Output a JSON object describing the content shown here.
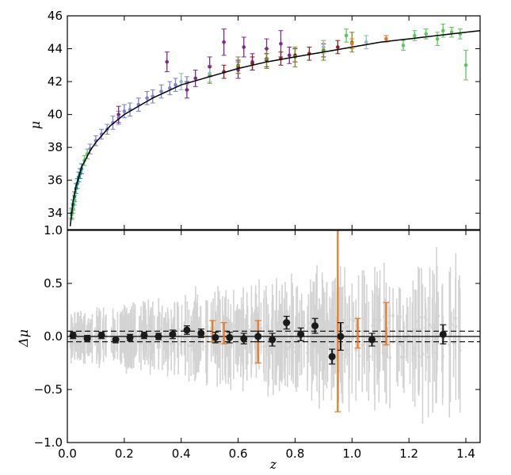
{
  "chart_data": [
    {
      "type": "scatter",
      "panel": "top",
      "ylabel": "μ",
      "xlim": [
        0.0,
        1.45
      ],
      "ylim": [
        33.0,
        46.0
      ],
      "yticks": [
        34,
        36,
        38,
        40,
        42,
        44,
        46
      ],
      "grid": false,
      "legend": "none",
      "model_curve": {
        "name": "",
        "x": [
          0.01,
          0.02,
          0.03,
          0.05,
          0.08,
          0.1,
          0.15,
          0.2,
          0.3,
          0.4,
          0.5,
          0.6,
          0.7,
          0.8,
          0.9,
          1.0,
          1.1,
          1.2,
          1.3,
          1.4,
          1.45
        ],
        "y": [
          33.2,
          34.7,
          35.6,
          36.8,
          37.8,
          38.3,
          39.3,
          40.0,
          41.0,
          41.8,
          42.3,
          42.8,
          43.2,
          43.5,
          43.8,
          44.1,
          44.4,
          44.6,
          44.8,
          45.0,
          45.1
        ],
        "color": "#000000"
      },
      "series": [
        {
          "color": "#1b8a8a",
          "points": [
            [
              0.015,
              34.0,
              0.3
            ],
            [
              0.02,
              34.5,
              0.3
            ],
            [
              0.025,
              35.0,
              0.3
            ],
            [
              0.03,
              35.5,
              0.3
            ],
            [
              0.035,
              35.8,
              0.3
            ],
            [
              0.04,
              36.2,
              0.3
            ],
            [
              0.045,
              36.4,
              0.3
            ],
            [
              0.05,
              36.7,
              0.3
            ]
          ]
        },
        {
          "color": "#5ec45e",
          "points": [
            [
              0.015,
              33.9,
              0.3
            ],
            [
              0.02,
              34.3,
              0.3
            ],
            [
              0.025,
              34.8,
              0.3
            ],
            [
              0.06,
              37.2,
              0.3
            ],
            [
              0.07,
              37.6,
              0.3
            ],
            [
              0.98,
              44.8,
              0.4
            ],
            [
              1.18,
              44.2,
              0.3
            ],
            [
              1.22,
              44.8,
              0.3
            ],
            [
              1.26,
              44.9,
              0.3
            ],
            [
              1.3,
              44.6,
              0.4
            ],
            [
              1.32,
              45.1,
              0.4
            ],
            [
              1.35,
              45.0,
              0.3
            ],
            [
              1.38,
              44.9,
              0.3
            ],
            [
              1.4,
              43.0,
              0.9
            ]
          ]
        },
        {
          "color": "#7f7fd5",
          "points": [
            [
              0.08,
              37.9,
              0.3
            ],
            [
              0.1,
              38.4,
              0.3
            ],
            [
              0.12,
              38.8,
              0.3
            ],
            [
              0.14,
              39.1,
              0.3
            ],
            [
              0.16,
              39.5,
              0.4
            ],
            [
              0.18,
              39.8,
              0.4
            ],
            [
              0.2,
              40.2,
              0.4
            ],
            [
              0.22,
              40.3,
              0.4
            ],
            [
              0.25,
              40.6,
              0.4
            ],
            [
              0.28,
              41.0,
              0.4
            ],
            [
              0.3,
              41.1,
              0.4
            ],
            [
              0.33,
              41.4,
              0.4
            ],
            [
              0.36,
              41.6,
              0.4
            ],
            [
              0.38,
              41.8,
              0.4
            ],
            [
              0.42,
              41.9,
              0.4
            ]
          ]
        },
        {
          "color": "#7b2a8a",
          "points": [
            [
              0.18,
              40.0,
              0.5
            ],
            [
              0.35,
              43.2,
              0.6
            ],
            [
              0.42,
              41.5,
              0.5
            ],
            [
              0.45,
              42.2,
              0.5
            ],
            [
              0.5,
              42.9,
              0.6
            ],
            [
              0.55,
              44.4,
              0.8
            ],
            [
              0.6,
              42.7,
              0.5
            ],
            [
              0.62,
              44.1,
              0.6
            ],
            [
              0.65,
              43.2,
              0.5
            ],
            [
              0.7,
              44.0,
              0.6
            ],
            [
              0.75,
              44.3,
              0.8
            ],
            [
              0.78,
              43.6,
              0.5
            ]
          ]
        },
        {
          "color": "#8b1e1e",
          "points": [
            [
              0.55,
              42.6,
              0.4
            ],
            [
              0.6,
              42.9,
              0.4
            ],
            [
              0.65,
              43.1,
              0.4
            ],
            [
              0.7,
              43.3,
              0.4
            ],
            [
              0.75,
              43.4,
              0.4
            ],
            [
              0.8,
              43.6,
              0.4
            ],
            [
              0.85,
              43.7,
              0.4
            ],
            [
              0.9,
              43.9,
              0.4
            ],
            [
              0.95,
              44.1,
              0.4
            ]
          ]
        },
        {
          "color": "#6b8e23",
          "points": [
            [
              0.5,
              42.4,
              0.5
            ],
            [
              0.6,
              43.0,
              0.5
            ],
            [
              0.7,
              43.4,
              0.6
            ],
            [
              0.8,
              43.5,
              0.6
            ],
            [
              0.9,
              43.9,
              0.6
            ],
            [
              1.0,
              44.4,
              0.6
            ]
          ]
        },
        {
          "color": "#e87722",
          "points": [
            [
              1.0,
              44.3,
              0.3
            ],
            [
              1.12,
              44.6,
              0.2
            ]
          ]
        },
        {
          "color": "#8fbfbf",
          "points": [
            [
              0.4,
              42.0,
              0.5
            ],
            [
              0.5,
              42.5,
              0.5
            ],
            [
              0.9,
              44.1,
              0.4
            ],
            [
              1.05,
              44.4,
              0.4
            ]
          ]
        }
      ]
    },
    {
      "type": "scatter",
      "panel": "bottom",
      "xlabel": "z",
      "ylabel": "Δμ",
      "xlim": [
        0.0,
        1.45
      ],
      "ylim": [
        -1.0,
        1.0
      ],
      "xticks": [
        0.0,
        0.2,
        0.4,
        0.6,
        0.8,
        1.0,
        1.2,
        1.4
      ],
      "yticks": [
        -1.0,
        -0.5,
        0.0,
        0.5,
        1.0
      ],
      "grid": false,
      "legend": "none",
      "reference_lines": [
        {
          "y": 0.0,
          "style": "solid"
        },
        {
          "y": 0.05,
          "style": "dashed"
        },
        {
          "y": -0.05,
          "style": "dashed"
        }
      ],
      "individual_residuals_color": "#d3d3d3",
      "binned_points": [
        [
          0.02,
          0.01,
          0.03
        ],
        [
          0.07,
          -0.02,
          0.03
        ],
        [
          0.12,
          0.01,
          0.03
        ],
        [
          0.17,
          -0.03,
          0.03
        ],
        [
          0.22,
          -0.01,
          0.03
        ],
        [
          0.27,
          0.01,
          0.03
        ],
        [
          0.32,
          0.0,
          0.03
        ],
        [
          0.37,
          0.02,
          0.04
        ],
        [
          0.42,
          0.06,
          0.04
        ],
        [
          0.47,
          0.03,
          0.04
        ],
        [
          0.52,
          -0.01,
          0.05
        ],
        [
          0.57,
          -0.01,
          0.05
        ],
        [
          0.62,
          -0.02,
          0.05
        ],
        [
          0.67,
          0.0,
          0.05
        ],
        [
          0.72,
          -0.03,
          0.06
        ],
        [
          0.77,
          0.13,
          0.06
        ],
        [
          0.82,
          0.02,
          0.06
        ],
        [
          0.87,
          0.1,
          0.07
        ],
        [
          0.93,
          -0.19,
          0.07
        ],
        [
          0.96,
          0.0,
          0.13
        ],
        [
          1.07,
          -0.03,
          0.06
        ],
        [
          1.32,
          0.02,
          0.09
        ]
      ],
      "orange_points": [
        [
          0.51,
          0.05,
          0.1
        ],
        [
          0.55,
          0.03,
          0.1
        ],
        [
          0.67,
          -0.05,
          0.2
        ],
        [
          0.95,
          0.28,
          0.99
        ],
        [
          1.02,
          0.03,
          0.14
        ],
        [
          1.12,
          0.12,
          0.2
        ]
      ]
    }
  ]
}
